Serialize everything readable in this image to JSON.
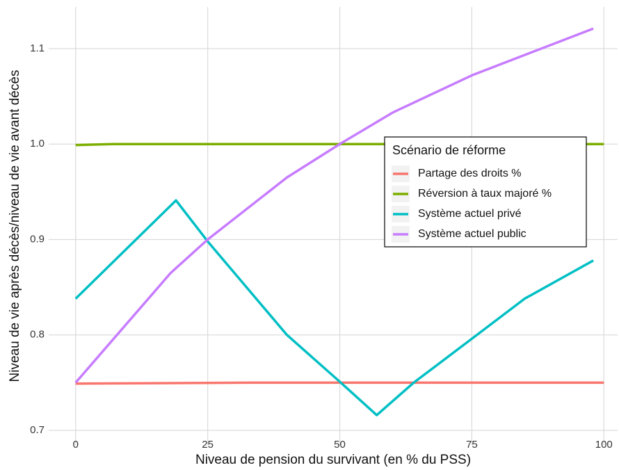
{
  "chart_data": {
    "type": "line",
    "xlabel": "Niveau de pension du survivant (en % du PSS)",
    "ylabel": "Niveau de vie après décès/niveau de vie avant décès",
    "legend_title": "Scénario de réforme",
    "legend_position": "right",
    "grid": true,
    "xlim": [
      -5.1,
      102.6
    ],
    "ylim": [
      0.6847,
      1.1437
    ],
    "xticks": [
      0,
      25,
      50,
      75,
      100
    ],
    "yticks": [
      0.7,
      0.8,
      0.9,
      {
        "value": 1,
        "label": "1.0"
      },
      1.1
    ],
    "series": [
      {
        "name": "Partage des droits %",
        "color": "#f8766d",
        "x": [
          0,
          33,
          100
        ],
        "values": [
          0.749,
          0.75,
          0.75
        ]
      },
      {
        "name": "Réversion à taux majoré %",
        "color": "#7cae00",
        "x": [
          0,
          7,
          100
        ],
        "values": [
          0.999,
          1.0,
          1.0
        ]
      },
      {
        "name": "Système actuel privé",
        "color": "#00bfc4",
        "x": [
          0,
          19,
          25,
          40,
          50,
          57,
          64,
          75,
          85,
          98
        ],
        "values": [
          0.838,
          0.941,
          0.898,
          0.8,
          0.751,
          0.716,
          0.75,
          0.796,
          0.838,
          0.878
        ]
      },
      {
        "name": "Système actuel public",
        "color": "#c77cff",
        "x": [
          0,
          18,
          25,
          40,
          50,
          60,
          75,
          90,
          98
        ],
        "values": [
          0.75,
          0.865,
          0.9,
          0.965,
          1.0,
          1.033,
          1.072,
          1.104,
          1.121
        ]
      }
    ]
  }
}
